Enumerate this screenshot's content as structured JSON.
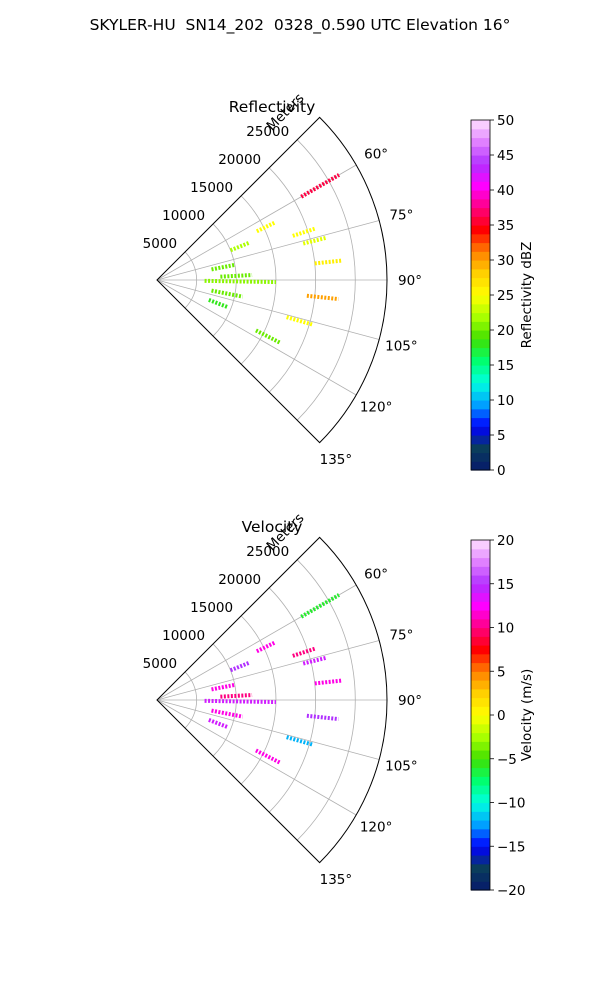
{
  "figure": {
    "title": "SKYLER-HU  SN14_202  0328_0.590 UTC Elevation 16°"
  },
  "chart_data": [
    {
      "type": "polar-sector-scatter",
      "title": "Reflectivity",
      "radial_axis_label": "Meters",
      "radial_ticks": [
        5000,
        10000,
        15000,
        20000,
        25000
      ],
      "rlim": [
        0,
        29000
      ],
      "azimuth_ticks": [
        "60°",
        "75°",
        "90°",
        "105°",
        "120°",
        "135°"
      ],
      "azimuth_range_deg": [
        45,
        135
      ],
      "grid": true,
      "colorbar": {
        "label": "Reflectivity dBZ",
        "range": [
          0,
          50
        ],
        "ticks": [
          "0",
          "5",
          "10",
          "15",
          "20",
          "25",
          "30",
          "35",
          "40",
          "45",
          "50"
        ],
        "colormap": [
          "#061a6b",
          "#0a3d5c",
          "#0000ff",
          "#00a0ff",
          "#00ffe0",
          "#00ff70",
          "#40e000",
          "#a8ff00",
          "#ffff00",
          "#ffd000",
          "#ff8000",
          "#ff0000",
          "#ff0080",
          "#ff00ff",
          "#b030ff",
          "#e080ff",
          "#ffe0ff"
        ]
      },
      "series": [
        {
          "azimuth_deg": 60,
          "range_m": [
            21000,
            26500
          ],
          "value": 36
        },
        {
          "azimuth_deg": 64,
          "range_m": [
            14000,
            16500
          ],
          "value": 25
        },
        {
          "azimuth_deg": 68,
          "range_m": [
            10000,
            12500
          ],
          "value": 22
        },
        {
          "azimuth_deg": 72,
          "range_m": [
            18000,
            21000
          ],
          "value": 25
        },
        {
          "azimuth_deg": 76,
          "range_m": [
            19000,
            22000
          ],
          "value": 24
        },
        {
          "azimuth_deg": 79,
          "range_m": [
            7000,
            10000
          ],
          "value": 20
        },
        {
          "azimuth_deg": 84,
          "range_m": [
            20000,
            23500
          ],
          "value": 26
        },
        {
          "azimuth_deg": 87,
          "range_m": [
            8000,
            12000
          ],
          "value": 20
        },
        {
          "azimuth_deg": 91,
          "range_m": [
            6000,
            15000
          ],
          "value": 21
        },
        {
          "azimuth_deg": 96,
          "range_m": [
            19000,
            23000
          ],
          "value": 30
        },
        {
          "azimuth_deg": 101,
          "range_m": [
            7000,
            11000
          ],
          "value": 20
        },
        {
          "azimuth_deg": 106,
          "range_m": [
            17000,
            20500
          ],
          "value": 25
        },
        {
          "azimuth_deg": 111,
          "range_m": [
            7000,
            9500
          ],
          "value": 18
        },
        {
          "azimuth_deg": 117,
          "range_m": [
            14000,
            17500
          ],
          "value": 20
        }
      ]
    },
    {
      "type": "polar-sector-scatter",
      "title": "Velocity",
      "radial_axis_label": "Meters",
      "radial_ticks": [
        5000,
        10000,
        15000,
        20000,
        25000
      ],
      "rlim": [
        0,
        29000
      ],
      "azimuth_ticks": [
        "60°",
        "75°",
        "90°",
        "105°",
        "120°",
        "135°"
      ],
      "azimuth_range_deg": [
        45,
        135
      ],
      "grid": true,
      "colorbar": {
        "label": "Velocity (m/s)",
        "range": [
          -20,
          20
        ],
        "ticks": [
          "−20",
          "−15",
          "−10",
          "−5",
          "0",
          "5",
          "10",
          "15",
          "20"
        ],
        "colormap": [
          "#061a6b",
          "#0a3d5c",
          "#0000ff",
          "#00a0ff",
          "#00ffe0",
          "#00ff70",
          "#40e000",
          "#a8ff00",
          "#ffff00",
          "#ffd000",
          "#ff8000",
          "#ff0000",
          "#ff0080",
          "#ff00ff",
          "#b030ff",
          "#e080ff",
          "#ffe0ff"
        ]
      },
      "series": [
        {
          "azimuth_deg": 60,
          "range_m": [
            21000,
            26500
          ],
          "value": -6
        },
        {
          "azimuth_deg": 64,
          "range_m": [
            14000,
            16500
          ],
          "value": 12
        },
        {
          "azimuth_deg": 68,
          "range_m": [
            10000,
            12500
          ],
          "value": 15
        },
        {
          "azimuth_deg": 72,
          "range_m": [
            18000,
            21000
          ],
          "value": 10
        },
        {
          "azimuth_deg": 76,
          "range_m": [
            19000,
            22000
          ],
          "value": 14
        },
        {
          "azimuth_deg": 79,
          "range_m": [
            7000,
            10000
          ],
          "value": 12
        },
        {
          "azimuth_deg": 84,
          "range_m": [
            20000,
            23500
          ],
          "value": 12
        },
        {
          "azimuth_deg": 87,
          "range_m": [
            8000,
            12000
          ],
          "value": 10
        },
        {
          "azimuth_deg": 91,
          "range_m": [
            6000,
            15000
          ],
          "value": 14
        },
        {
          "azimuth_deg": 96,
          "range_m": [
            19000,
            23000
          ],
          "value": 15
        },
        {
          "azimuth_deg": 101,
          "range_m": [
            7000,
            11000
          ],
          "value": 12
        },
        {
          "azimuth_deg": 106,
          "range_m": [
            17000,
            20500
          ],
          "value": -12
        },
        {
          "azimuth_deg": 111,
          "range_m": [
            7000,
            9500
          ],
          "value": 14
        },
        {
          "azimuth_deg": 117,
          "range_m": [
            14000,
            17500
          ],
          "value": 12
        }
      ]
    }
  ]
}
